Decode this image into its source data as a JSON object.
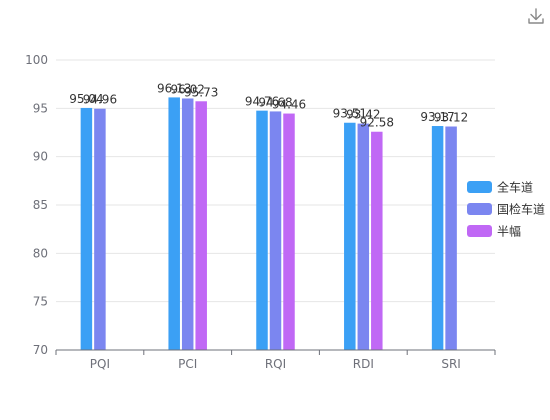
{
  "toolbar": {
    "download_icon": "download-icon"
  },
  "colors": {
    "series": [
      "#3ba0f5",
      "#7b86f0",
      "#c068f5"
    ],
    "grid": "#e6e6e6",
    "axis": "#6e7079",
    "icon": "#888888"
  },
  "chart_data": {
    "type": "bar",
    "categories": [
      "PQI",
      "PCI",
      "RQI",
      "RDI",
      "SRI"
    ],
    "ylim": [
      70,
      100
    ],
    "yticks": [
      70,
      75,
      80,
      85,
      90,
      95,
      100
    ],
    "grid": true,
    "legend_position": "right",
    "series": [
      {
        "name": "全车道",
        "values": [
          95.04,
          96.13,
          94.76,
          93.51,
          93.17
        ]
      },
      {
        "name": "国检车道",
        "values": [
          94.96,
          96.02,
          94.68,
          93.42,
          93.12
        ]
      },
      {
        "name": "半幅",
        "values": [
          null,
          95.73,
          94.46,
          92.58,
          null
        ]
      }
    ]
  }
}
